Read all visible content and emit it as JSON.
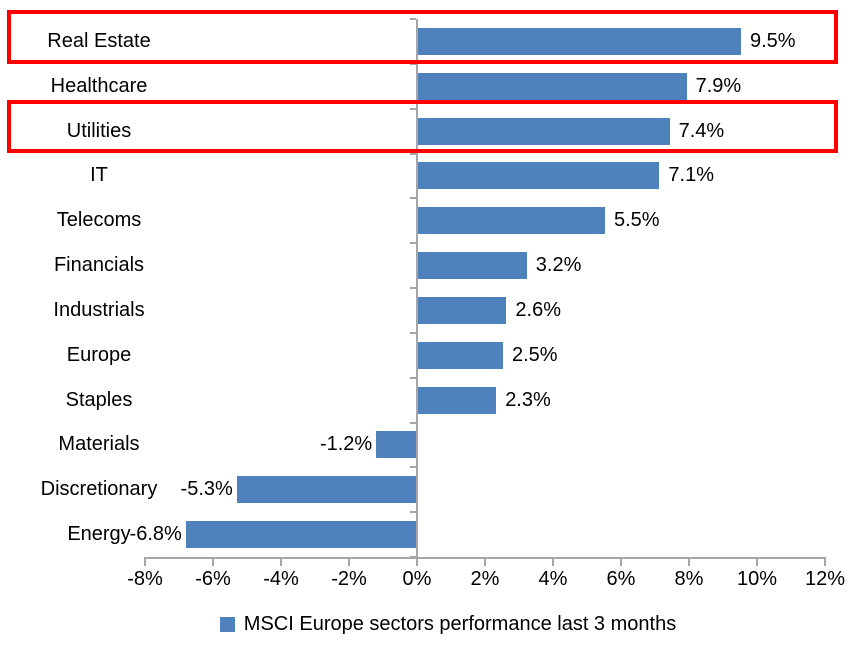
{
  "chart_data": {
    "type": "bar",
    "orientation": "horizontal",
    "categories": [
      "Real Estate",
      "Healthcare",
      "Utilities",
      "IT",
      "Telecoms",
      "Financials",
      "Industrials",
      "Europe",
      "Staples",
      "Materials",
      "Discretionary",
      "Energy"
    ],
    "values": [
      9.5,
      7.9,
      7.4,
      7.1,
      5.5,
      3.2,
      2.6,
      2.5,
      2.3,
      -1.2,
      -5.3,
      -6.8
    ],
    "value_labels": [
      "9.5%",
      "7.9%",
      "7.4%",
      "7.1%",
      "5.5%",
      "3.2%",
      "2.6%",
      "2.5%",
      "2.3%",
      "-1.2%",
      "-5.3%",
      "-6.8%"
    ],
    "xlim": [
      -8,
      12
    ],
    "x_tick_values": [
      -8,
      -6,
      -4,
      -2,
      0,
      2,
      4,
      6,
      8,
      10,
      12
    ],
    "x_tick_labels": [
      "-8%",
      "-6%",
      "-4%",
      "-2%",
      "0%",
      "2%",
      "4%",
      "6%",
      "8%",
      "10%",
      "12%"
    ],
    "grid": false,
    "legend": {
      "label": "MSCI Europe sectors performance last 3 months",
      "position": "bottom"
    },
    "highlighted_categories": [
      "Real Estate",
      "Utilities"
    ],
    "colors": {
      "bar": "#4F81BD",
      "axis": "#A6A6A6",
      "highlight_border": "#FF0000",
      "text": "#000000",
      "background": "#FFFFFF"
    }
  }
}
